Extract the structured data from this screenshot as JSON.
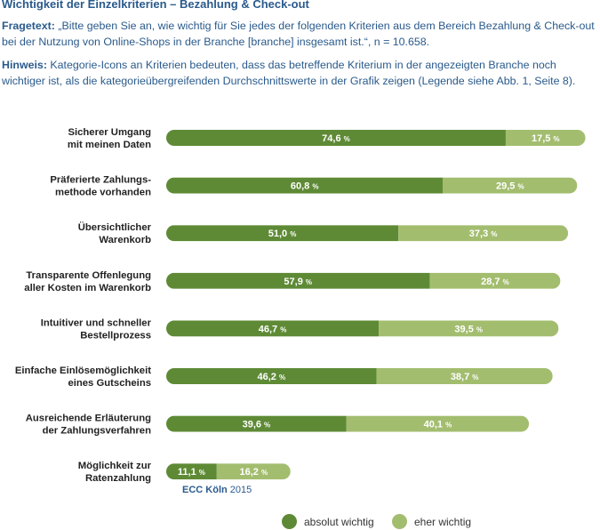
{
  "title": "Wichtigkeit der Einzelkriterien – Bezahlung & Check-out",
  "question": {
    "label": "Fragetext:",
    "text": "„Bitte geben Sie an, wie wichtig für Sie jedes der folgenden Kriterien aus dem Bereich Bezahlung & Check-out bei der Nutzung von Online-Shops in der Branche [branche] insgesamt ist.“, n = 10.658."
  },
  "note": {
    "label": "Hinweis:",
    "text": "Kategorie-Icons an Kriterien bedeuten, dass das betreffende Kriterium in der angezeigten Branche noch wichtiger ist, als die kategorieübergreifenden Durchschnittswerte in der Grafik zeigen (Legende siehe Abb. 1, Seite 8)."
  },
  "source": {
    "name": "ECC Köln",
    "year": "2015"
  },
  "colors": {
    "absolut": "#5e8a35",
    "eher": "#a3bd6f"
  },
  "chart_data": {
    "type": "bar",
    "orientation": "horizontal",
    "stacked": true,
    "unit": "%",
    "categories": [
      [
        "Sicherer Umgang",
        "mit meinen Daten"
      ],
      [
        "Präferierte Zahlungs-",
        "methode vorhanden"
      ],
      [
        "Übersichtlicher",
        "Warenkorb"
      ],
      [
        "Transparente Offenlegung",
        "aller Kosten im Warenkorb"
      ],
      [
        "Intuitiver und schneller",
        "Bestellprozess"
      ],
      [
        "Einfache Einlösemöglichkeit",
        "eines Gutscheins"
      ],
      [
        "Ausreichende Erläuterung",
        "der Zahlungsverfahren"
      ],
      [
        "Möglichkeit zur",
        "Ratenzahlung"
      ]
    ],
    "series": [
      {
        "name": "absolut wichtig",
        "values": [
          74.6,
          60.8,
          51.0,
          57.9,
          46.7,
          46.2,
          39.6,
          11.1
        ],
        "labels": [
          "74,6",
          "60,8",
          "51,0",
          "57,9",
          "46,7",
          "46,2",
          "39,6",
          "11,1"
        ]
      },
      {
        "name": "eher wichtig",
        "values": [
          17.5,
          29.5,
          37.3,
          28.7,
          39.5,
          38.7,
          40.1,
          16.2
        ],
        "labels": [
          "17,5",
          "29,5",
          "37,3",
          "28,7",
          "39,5",
          "38,7",
          "40,1",
          "16,2"
        ]
      }
    ],
    "legend": "bottom"
  }
}
